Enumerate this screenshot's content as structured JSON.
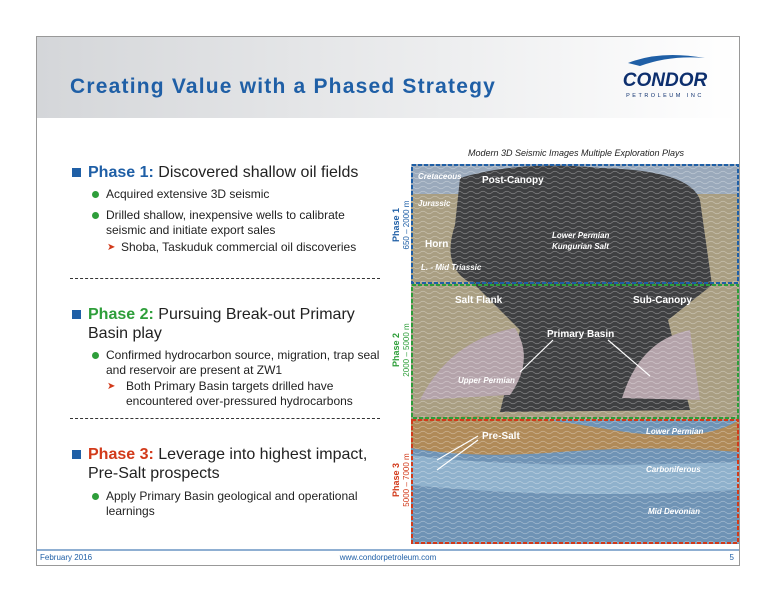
{
  "header": {
    "title": "Creating Value with a Phased Strategy",
    "logo": "CONDOR",
    "logo_sub": "PETROLEUM INC"
  },
  "phases": [
    {
      "label": "Phase 1:",
      "heading": "Discovered shallow oil fields",
      "bullets": [
        "Acquired extensive 3D seismic",
        "Drilled shallow, inexpensive wells to calibrate seismic and initiate export sales"
      ],
      "sub": [
        "Shoba, Taskuduk commercial oil discoveries"
      ]
    },
    {
      "label": "Phase 2:",
      "heading": "Pursuing Break-out Primary Basin play",
      "bullets": [
        "Confirmed hydrocarbon source, migration, trap seal and reservoir are present at ZW1"
      ],
      "sub": [
        "Both Primary Basin targets drilled have encountered over-pressured hydrocarbons"
      ]
    },
    {
      "label": "Phase 3:",
      "heading": "Leverage into highest impact, Pre-Salt prospects",
      "bullets": [
        "Apply Primary Basin geological and operational learnings"
      ]
    }
  ],
  "figure": {
    "caption": "Modern 3D Seismic Images Multiple Exploration Plays",
    "phase_labels": [
      {
        "name": "Phase 1",
        "depth": "650 – 2000 m"
      },
      {
        "name": "Phase 2",
        "depth": "2000 – 5000 m"
      },
      {
        "name": "Phase 3",
        "depth": "5000 – 7000 m"
      }
    ],
    "labels": [
      "Cretaceous",
      "Post-Canopy",
      "Jurassic",
      "Lower Permian",
      "Kungurian Salt",
      "Horn",
      "L. - Mid Triassic",
      "Salt Flank",
      "Sub-Canopy",
      "Primary Basin",
      "Upper Permian",
      "Pre-Salt",
      "Lower Permian",
      "Carboniferous",
      "Mid Devonian"
    ]
  },
  "footer": {
    "date": "February 2016",
    "url": "www.condorpetroleum.com",
    "page": "5"
  }
}
